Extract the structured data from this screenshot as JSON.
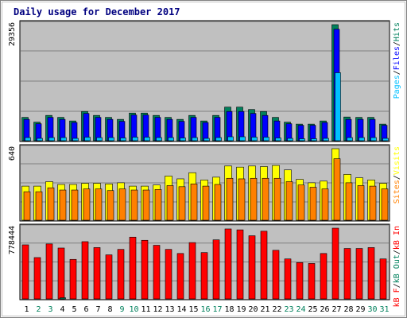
{
  "title": "Daily usage for December 2017",
  "colors": {
    "hits": "#00805c",
    "files": "#0000ff",
    "pages": "#00c0ff",
    "visits": "#ffff00",
    "sites": "#ff8000",
    "kb_in": "#ff0000",
    "kb_out": "#00805c",
    "kb_f": "#ff0000",
    "panel": "#c0c0c0",
    "frame": "#000080",
    "weekend_label": "#00805c"
  },
  "chart_data": [
    {
      "type": "bar",
      "panel": "hits-files-pages",
      "side_label": [
        "Pages",
        "Files",
        "Hits"
      ],
      "ylabel": "29356",
      "ylim": [
        0,
        29356
      ],
      "categories": [
        "1",
        "2",
        "3",
        "4",
        "5",
        "6",
        "7",
        "8",
        "9",
        "10",
        "11",
        "12",
        "13",
        "14",
        "15",
        "16",
        "17",
        "18",
        "19",
        "20",
        "21",
        "22",
        "23",
        "24",
        "25",
        "26",
        "27",
        "28",
        "29",
        "30",
        "31"
      ],
      "series": [
        {
          "name": "Hits",
          "values": [
            5900,
            4700,
            6400,
            5900,
            5000,
            7400,
            6400,
            5900,
            5400,
            7000,
            7000,
            6400,
            5900,
            5400,
            6400,
            5000,
            6400,
            8500,
            8500,
            7900,
            7400,
            5900,
            4700,
            4200,
            4200,
            5000,
            29356,
            6000,
            5900,
            5900,
            4200
          ]
        },
        {
          "name": "Files",
          "values": [
            5400,
            4300,
            5900,
            5400,
            4600,
            6900,
            5900,
            5400,
            4900,
            6500,
            6500,
            5900,
            5400,
            4900,
            5900,
            4600,
            5900,
            7400,
            7400,
            6900,
            6400,
            5000,
            4300,
            3900,
            3900,
            4600,
            28200,
            5400,
            5400,
            5400,
            3900
          ]
        },
        {
          "name": "Pages",
          "values": [
            800,
            600,
            800,
            800,
            600,
            900,
            800,
            800,
            700,
            900,
            900,
            800,
            800,
            700,
            800,
            600,
            800,
            1000,
            1000,
            900,
            900,
            700,
            600,
            500,
            500,
            600,
            17200,
            800,
            800,
            800,
            600
          ]
        }
      ]
    },
    {
      "type": "bar",
      "panel": "visits-sites",
      "side_label": [
        "Sites",
        "Visits"
      ],
      "ylabel": "640",
      "ylim": [
        0,
        640
      ],
      "categories": [
        "1",
        "2",
        "3",
        "4",
        "5",
        "6",
        "7",
        "8",
        "9",
        "10",
        "11",
        "12",
        "13",
        "14",
        "15",
        "16",
        "17",
        "18",
        "19",
        "20",
        "21",
        "22",
        "23",
        "24",
        "25",
        "26",
        "27",
        "28",
        "29",
        "30",
        "31"
      ],
      "series": [
        {
          "name": "Visits",
          "values": [
            305,
            305,
            345,
            320,
            320,
            330,
            330,
            325,
            335,
            305,
            305,
            315,
            395,
            370,
            425,
            360,
            385,
            485,
            475,
            485,
            480,
            490,
            450,
            365,
            335,
            350,
            640,
            410,
            380,
            360,
            330
          ]
        },
        {
          "name": "Sites",
          "values": [
            255,
            255,
            290,
            270,
            270,
            280,
            280,
            265,
            280,
            270,
            270,
            275,
            310,
            300,
            325,
            305,
            320,
            375,
            370,
            375,
            375,
            375,
            345,
            315,
            295,
            280,
            550,
            335,
            310,
            305,
            280
          ]
        }
      ]
    },
    {
      "type": "bar",
      "panel": "kbytes",
      "side_label": [
        "kB F",
        "kB Out",
        "kB In"
      ],
      "ylabel": "778444",
      "ylim": [
        0,
        778444
      ],
      "categories": [
        "1",
        "2",
        "3",
        "4",
        "5",
        "6",
        "7",
        "8",
        "9",
        "10",
        "11",
        "12",
        "13",
        "14",
        "15",
        "16",
        "17",
        "18",
        "19",
        "20",
        "21",
        "22",
        "23",
        "24",
        "25",
        "26",
        "27",
        "28",
        "29",
        "30",
        "31"
      ],
      "series": [
        {
          "name": "kB F",
          "values": [
            0,
            0,
            0,
            0,
            0,
            0,
            0,
            0,
            0,
            0,
            0,
            0,
            0,
            0,
            0,
            0,
            0,
            0,
            0,
            0,
            0,
            0,
            0,
            0,
            0,
            0,
            0,
            0,
            0,
            0,
            0
          ]
        },
        {
          "name": "kB Out",
          "values": [
            0,
            0,
            0,
            12000,
            0,
            0,
            0,
            0,
            0,
            0,
            0,
            0,
            0,
            0,
            0,
            0,
            0,
            0,
            0,
            0,
            0,
            0,
            0,
            0,
            0,
            0,
            0,
            0,
            0,
            0,
            0
          ]
        },
        {
          "name": "kB In",
          "values": [
            595000,
            455000,
            605000,
            560000,
            435000,
            630000,
            565000,
            485000,
            545000,
            680000,
            645000,
            590000,
            545000,
            500000,
            620000,
            510000,
            650000,
            770000,
            760000,
            695000,
            745000,
            535000,
            440000,
            400000,
            390000,
            500000,
            778444,
            555000,
            555000,
            565000,
            440000
          ]
        }
      ]
    }
  ],
  "day_labels": [
    "1",
    "2",
    "3",
    "4",
    "5",
    "6",
    "7",
    "8",
    "9",
    "10",
    "11",
    "12",
    "13",
    "14",
    "15",
    "16",
    "17",
    "18",
    "19",
    "20",
    "21",
    "22",
    "23",
    "24",
    "25",
    "26",
    "27",
    "28",
    "29",
    "30",
    "31"
  ],
  "weekend_days": [
    2,
    3,
    9,
    10,
    16,
    17,
    23,
    24,
    30,
    31
  ]
}
